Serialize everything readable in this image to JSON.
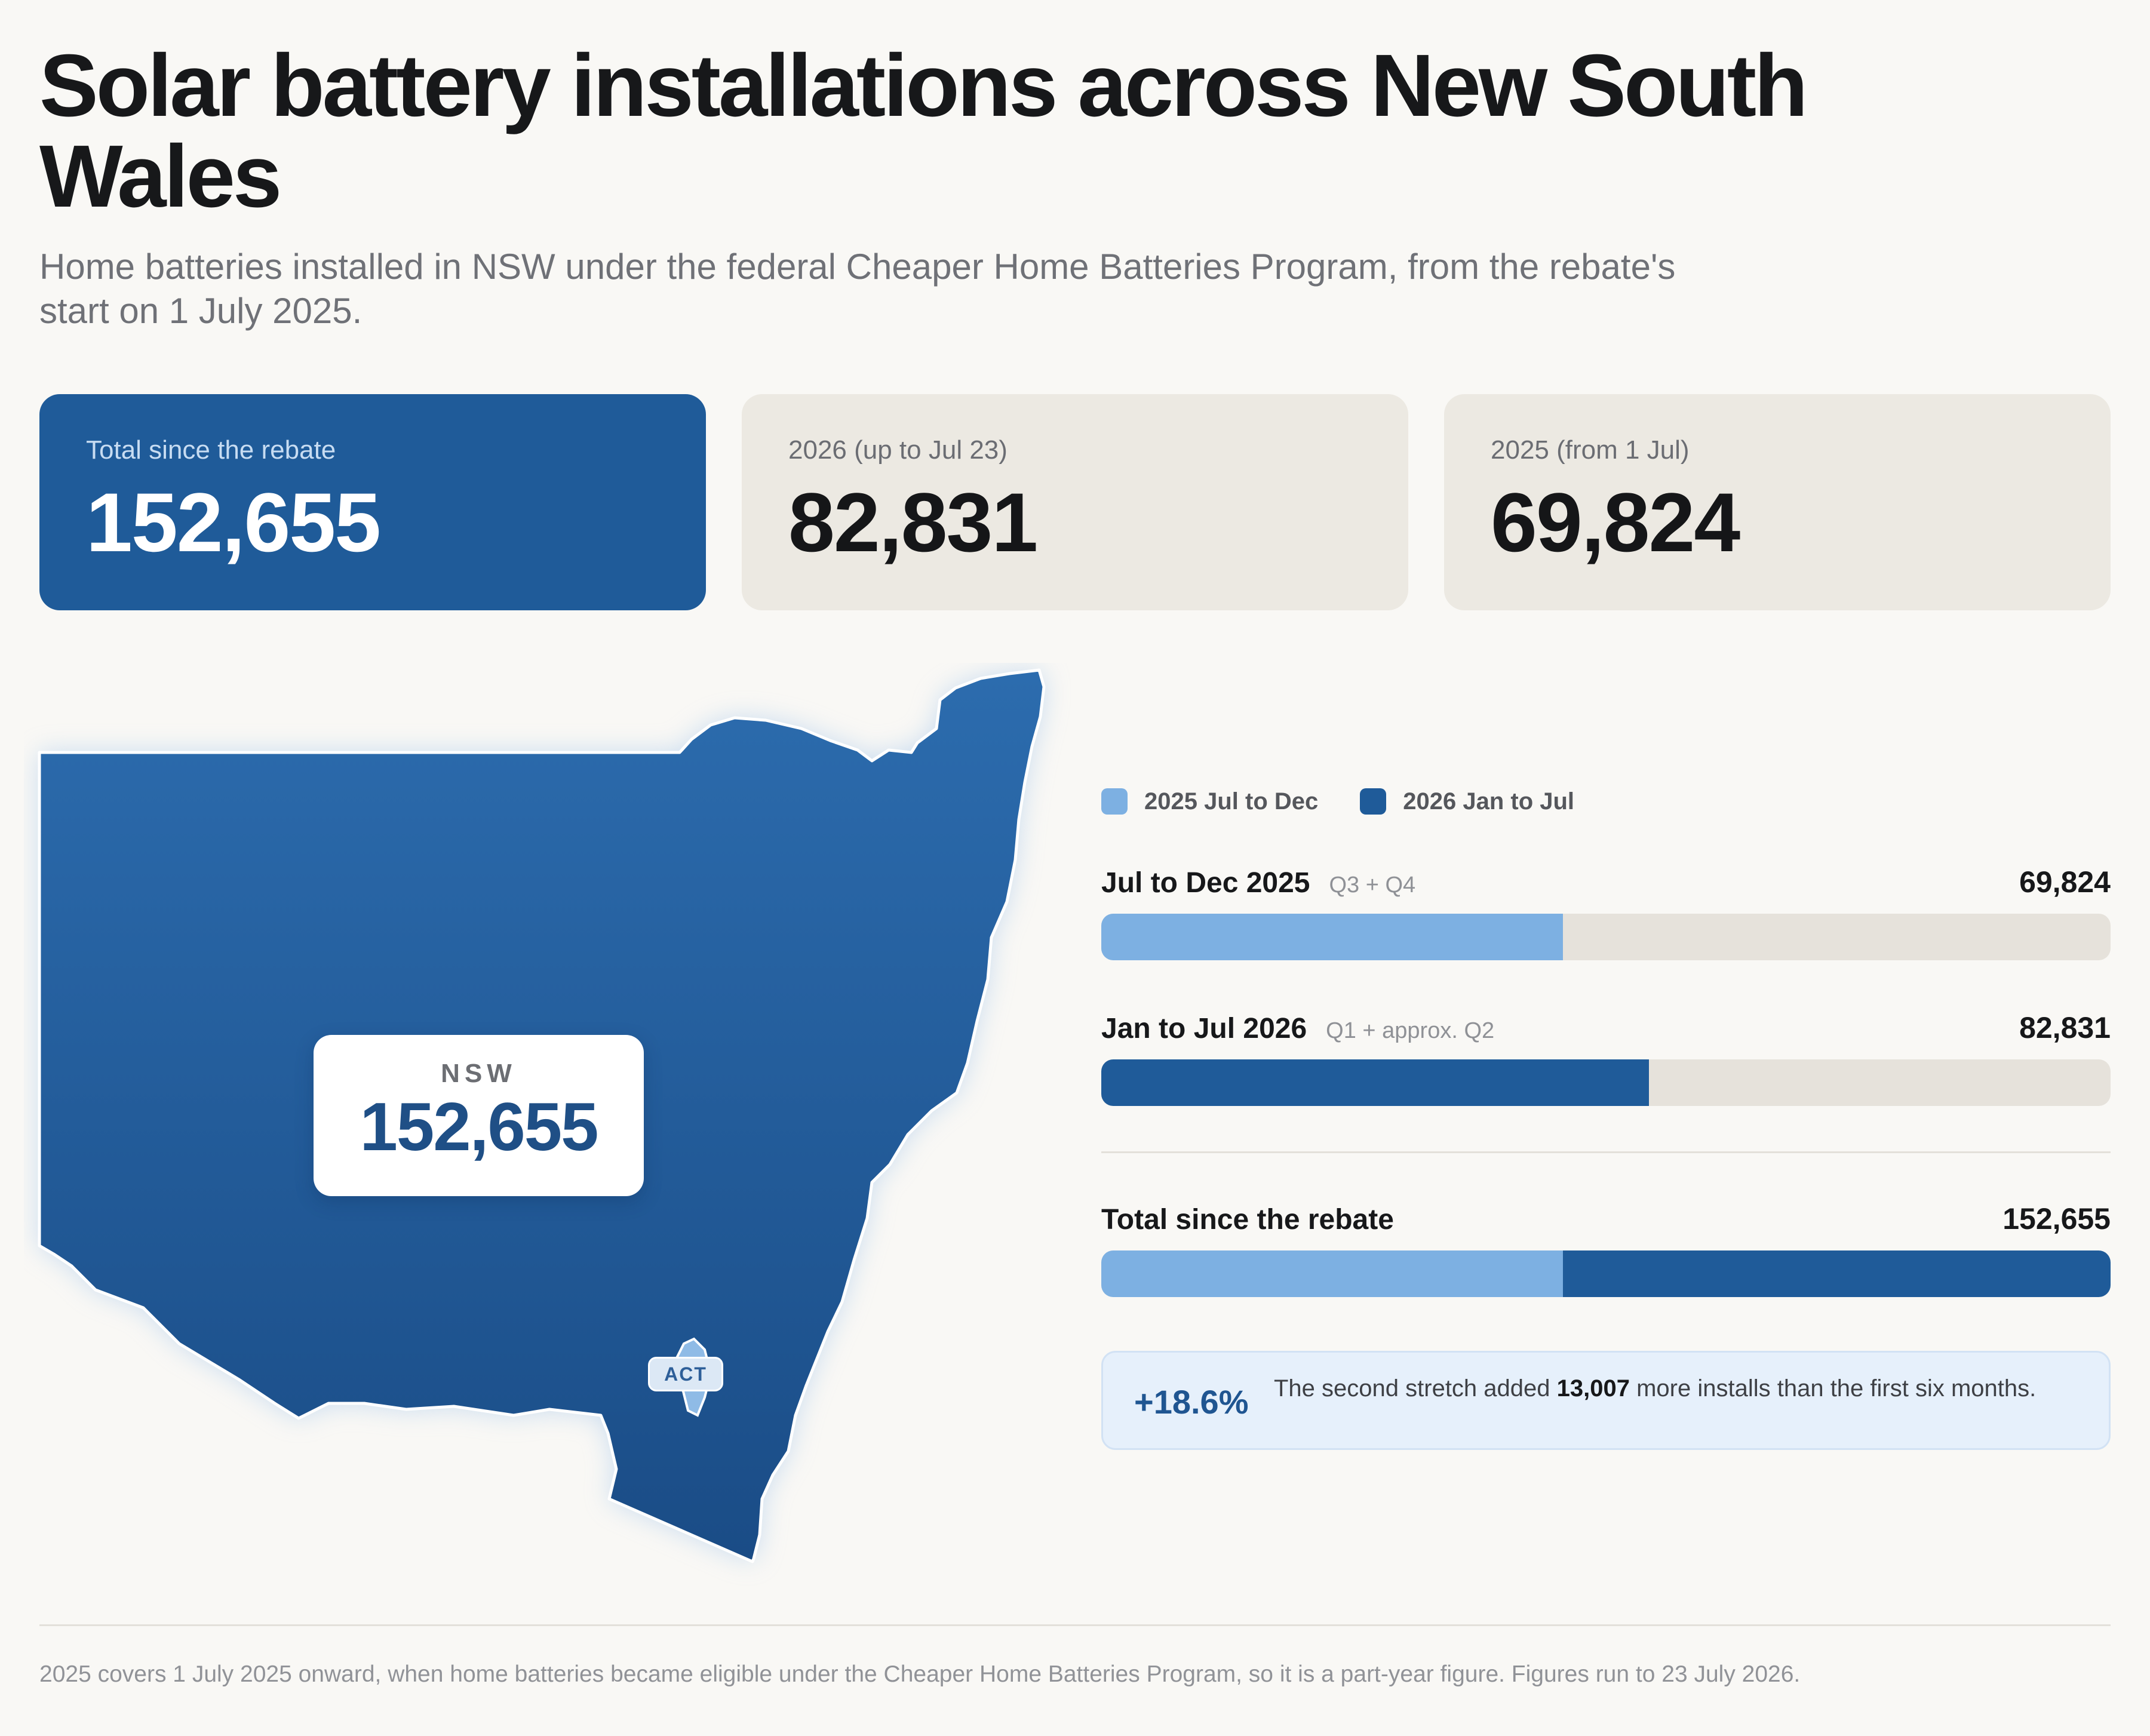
{
  "title": "Solar battery installations across New South Wales",
  "subtitle": "Home batteries installed in NSW under the federal Cheaper Home Batteries Program, from the rebate's start on 1 July 2025.",
  "kpis": [
    {
      "label": "Total since the rebate",
      "value": "152,655"
    },
    {
      "label": "2026 (up to Jul 23)",
      "value": "82,831"
    },
    {
      "label": "2025 (from 1 Jul)",
      "value": "69,824"
    }
  ],
  "map": {
    "state_label": "NSW",
    "state_value": "152,655",
    "act_label": "ACT"
  },
  "colors": {
    "light": "#7db0e2",
    "dark": "#1f5b99",
    "track": "#e6e2db"
  },
  "chart_data": {
    "type": "bar",
    "legend": [
      "2025  Jul to Dec",
      "2026  Jan to Jul"
    ],
    "rows": [
      {
        "label": "Jul to Dec 2025",
        "sub": "Q3 + Q4",
        "value": 69824,
        "display": "69,824",
        "series": "2025  Jul to Dec"
      },
      {
        "label": "Jan to Jul 2026",
        "sub": "Q1 + approx. Q2",
        "value": 82831,
        "display": "82,831",
        "series": "2026  Jan to Jul"
      }
    ],
    "total": {
      "label": "Total since the rebate",
      "value": 152655,
      "display": "152,655",
      "segments": [
        69824,
        82831
      ]
    },
    "xlim": [
      0,
      152655
    ]
  },
  "callout": {
    "pct": "+18.6%",
    "text_before": "The second stretch added ",
    "bold": "13,007",
    "text_after": " more installs than the first six months."
  },
  "footnote": "2025 covers 1 July 2025 onward, when home batteries became eligible under the Cheaper Home Batteries Program, so it is a part-year figure. Figures run to 23 July 2026."
}
